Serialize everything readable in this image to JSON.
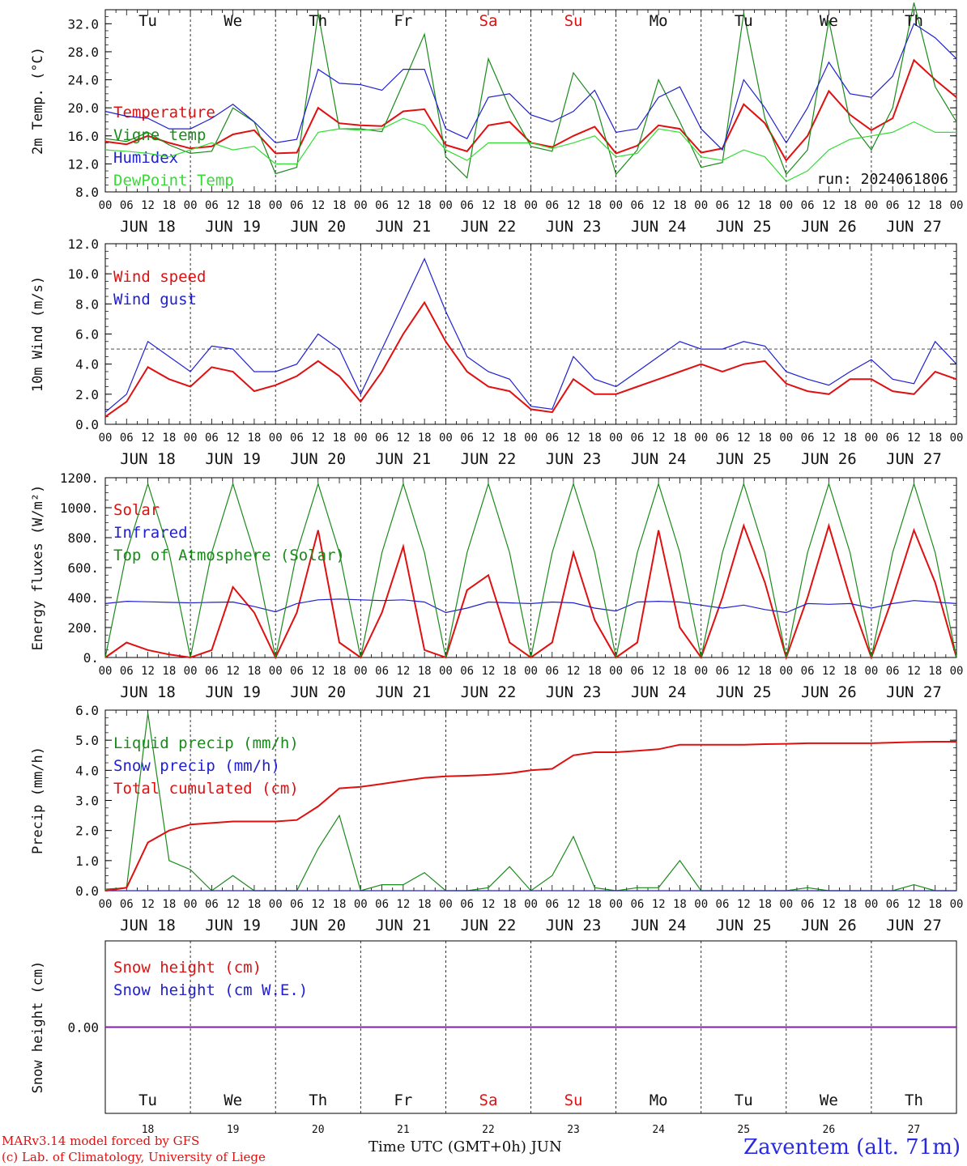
{
  "run_label": "run: 2024061806",
  "x_axis_label": "Time UTC (GMT+0h) JUN",
  "footer": {
    "model": "MARv3.14 model forced by GFS",
    "lab": "(c) Lab. of Climatology, University of Liege",
    "station": "Zaventem (alt. 71m)"
  },
  "days": [
    {
      "abbr": "Tu",
      "date": "JUN 18",
      "num": "18",
      "weekend": false
    },
    {
      "abbr": "We",
      "date": "JUN 19",
      "num": "19",
      "weekend": false
    },
    {
      "abbr": "Th",
      "date": "JUN 20",
      "num": "20",
      "weekend": false
    },
    {
      "abbr": "Fr",
      "date": "JUN 21",
      "num": "21",
      "weekend": false
    },
    {
      "abbr": "Sa",
      "date": "JUN 22",
      "num": "22",
      "weekend": true
    },
    {
      "abbr": "Su",
      "date": "JUN 23",
      "num": "23",
      "weekend": true
    },
    {
      "abbr": "Mo",
      "date": "JUN 24",
      "num": "24",
      "weekend": false
    },
    {
      "abbr": "Tu",
      "date": "JUN 25",
      "num": "25",
      "weekend": false
    },
    {
      "abbr": "We",
      "date": "JUN 26",
      "num": "26",
      "weekend": false
    },
    {
      "abbr": "Th",
      "date": "JUN 27",
      "num": "27",
      "weekend": false
    }
  ],
  "hour_labels": [
    "00",
    "06",
    "12",
    "18"
  ],
  "colors": {
    "red": "#e01010",
    "green": "#1a8a1a",
    "blue": "#2020d0",
    "lightgreen": "#33dd33",
    "purple": "#8020a0"
  },
  "chart_data": [
    {
      "type": "line",
      "ylabel": "2m Temp. (°C)",
      "ylim": [
        8,
        34
      ],
      "yticks": [
        "8.0",
        "12.0",
        "16.0",
        "20.0",
        "24.0",
        "28.0",
        "32.0"
      ],
      "ytick_values": [
        8,
        12,
        16,
        20,
        24,
        28,
        32
      ],
      "x_hours": [
        0,
        6,
        12,
        18,
        24,
        30,
        36,
        42,
        48,
        54,
        60,
        66,
        72,
        78,
        84,
        90,
        96,
        102,
        108,
        114,
        120,
        126,
        132,
        138,
        144,
        150,
        156,
        162,
        168,
        174,
        180,
        186,
        192,
        198,
        204,
        210,
        216,
        222,
        228,
        234,
        240
      ],
      "series": [
        {
          "name": "Temperature",
          "color": "red",
          "values": [
            15.2,
            14.8,
            16.0,
            15.0,
            14.2,
            14.5,
            16.2,
            16.8,
            13.5,
            13.6,
            20.0,
            17.8,
            17.5,
            17.4,
            19.5,
            19.8,
            14.7,
            13.8,
            17.5,
            18.0,
            15.0,
            14.4,
            16.0,
            17.3,
            13.5,
            14.6,
            17.5,
            17.0,
            13.6,
            14.2,
            20.5,
            17.8,
            12.5,
            16.0,
            22.4,
            19.0,
            16.8,
            18.5,
            26.8,
            24.0,
            21.5
          ]
        },
        {
          "name": "Vigne temp",
          "color": "green",
          "values": [
            15.6,
            15.2,
            16.5,
            14.7,
            13.5,
            13.8,
            20.0,
            18.0,
            10.6,
            11.5,
            33.5,
            17.0,
            17.0,
            16.6,
            23.5,
            30.5,
            13.0,
            10.0,
            27.0,
            20.0,
            14.5,
            13.8,
            25.0,
            21.0,
            10.5,
            14.0,
            24.0,
            18.0,
            11.5,
            12.2,
            33.5,
            18.5,
            10.5,
            14.0,
            32.5,
            18.0,
            14.0,
            20.0,
            35.0,
            23.0,
            18.0
          ]
        },
        {
          "name": "Humidex",
          "color": "blue",
          "values": [
            19.5,
            18.8,
            18.5,
            17.0,
            17.0,
            18.5,
            20.5,
            18.0,
            15.0,
            15.5,
            25.5,
            23.5,
            23.3,
            22.5,
            25.5,
            25.5,
            17.0,
            15.6,
            21.5,
            22.0,
            19.0,
            18.0,
            19.5,
            22.5,
            16.5,
            17.0,
            21.5,
            23.0,
            17.0,
            14.0,
            24.0,
            20.0,
            15.0,
            20.0,
            26.5,
            22.0,
            21.5,
            24.5,
            32.0,
            30.0,
            27.0
          ]
        },
        {
          "name": "DewPoint Temp",
          "color": "lightgreen",
          "values": [
            14.0,
            13.8,
            13.5,
            13.0,
            14.0,
            15.0,
            14.0,
            14.5,
            12.0,
            12.0,
            16.5,
            17.0,
            16.8,
            17.0,
            18.5,
            17.5,
            14.0,
            12.5,
            15.0,
            15.0,
            15.0,
            14.2,
            15.0,
            16.0,
            13.0,
            13.5,
            17.0,
            16.5,
            13.0,
            12.5,
            14.0,
            13.0,
            9.5,
            11.0,
            14.0,
            15.5,
            16.0,
            16.5,
            18.0,
            16.5,
            16.5
          ]
        }
      ]
    },
    {
      "type": "line",
      "ylabel": "10m Wind (m/s)",
      "ylim": [
        0,
        12
      ],
      "yticks": [
        "0.0",
        "2.0",
        "4.0",
        "6.0",
        "8.0",
        "10.0",
        "12.0"
      ],
      "ytick_values": [
        0,
        2,
        4,
        6,
        8,
        10,
        12
      ],
      "reference_line": 5,
      "x_hours": [
        0,
        6,
        12,
        18,
        24,
        30,
        36,
        42,
        48,
        54,
        60,
        66,
        72,
        78,
        84,
        90,
        96,
        102,
        108,
        114,
        120,
        126,
        132,
        138,
        144,
        150,
        156,
        162,
        168,
        174,
        180,
        186,
        192,
        198,
        204,
        210,
        216,
        222,
        228,
        234,
        240
      ],
      "series": [
        {
          "name": "Wind speed",
          "color": "red",
          "values": [
            0.5,
            1.5,
            3.8,
            3.0,
            2.5,
            3.8,
            3.5,
            2.2,
            2.6,
            3.2,
            4.2,
            3.2,
            1.5,
            3.5,
            6.0,
            8.1,
            5.5,
            3.5,
            2.5,
            2.2,
            1.0,
            0.8,
            3.0,
            2.0,
            2.0,
            2.5,
            3.0,
            3.5,
            4.0,
            3.5,
            4.0,
            4.2,
            2.7,
            2.2,
            2.0,
            3.0,
            3.0,
            2.2,
            2.0,
            3.5,
            3.0
          ]
        },
        {
          "name": "Wind gust",
          "color": "blue",
          "values": [
            0.8,
            2.0,
            5.5,
            4.5,
            3.5,
            5.2,
            5.0,
            3.5,
            3.5,
            4.0,
            6.0,
            5.0,
            2.0,
            5.0,
            8.0,
            11.0,
            7.5,
            4.5,
            3.5,
            3.0,
            1.2,
            1.0,
            4.5,
            3.0,
            2.5,
            3.5,
            4.5,
            5.5,
            5.0,
            5.0,
            5.5,
            5.2,
            3.5,
            3.0,
            2.6,
            3.5,
            4.3,
            3.0,
            2.7,
            5.5,
            4.0
          ]
        }
      ]
    },
    {
      "type": "line",
      "ylabel": "Energy fluxes (W/m²)",
      "ylim": [
        0,
        1200
      ],
      "yticks": [
        "0.",
        "200.",
        "400.",
        "600.",
        "800.",
        "1000.",
        "1200."
      ],
      "ytick_values": [
        0,
        200,
        400,
        600,
        800,
        1000,
        1200
      ],
      "x_hours": [
        0,
        6,
        12,
        18,
        24,
        30,
        36,
        42,
        48,
        54,
        60,
        66,
        72,
        78,
        84,
        90,
        96,
        102,
        108,
        114,
        120,
        126,
        132,
        138,
        144,
        150,
        156,
        162,
        168,
        174,
        180,
        186,
        192,
        198,
        204,
        210,
        216,
        222,
        228,
        234,
        240
      ],
      "series": [
        {
          "name": "Solar",
          "color": "red",
          "values": [
            0,
            100,
            50,
            20,
            0,
            50,
            470,
            300,
            0,
            300,
            850,
            100,
            0,
            300,
            740,
            50,
            0,
            450,
            550,
            100,
            0,
            100,
            700,
            250,
            0,
            100,
            850,
            200,
            0,
            400,
            880,
            500,
            0,
            400,
            880,
            400,
            0,
            400,
            850,
            500,
            0
          ]
        },
        {
          "name": "Infrared",
          "color": "blue",
          "values": [
            360,
            375,
            372,
            368,
            365,
            368,
            370,
            340,
            305,
            360,
            385,
            390,
            385,
            380,
            385,
            370,
            300,
            330,
            370,
            365,
            360,
            370,
            365,
            330,
            310,
            370,
            375,
            370,
            350,
            330,
            350,
            320,
            300,
            360,
            355,
            360,
            330,
            360,
            380,
            370,
            360
          ]
        },
        {
          "name": "Top of Atmosphere (Solar)",
          "color": "green",
          "values": [
            0,
            700,
            1160,
            700,
            0,
            700,
            1160,
            700,
            0,
            700,
            1160,
            700,
            0,
            700,
            1160,
            700,
            0,
            700,
            1160,
            700,
            0,
            700,
            1160,
            700,
            0,
            700,
            1160,
            700,
            0,
            700,
            1160,
            700,
            0,
            700,
            1160,
            700,
            0,
            700,
            1160,
            700,
            0
          ]
        }
      ]
    },
    {
      "type": "line",
      "ylabel": "Precip (mm/h)",
      "ylim": [
        0,
        6
      ],
      "yticks": [
        "0.0",
        "1.0",
        "2.0",
        "3.0",
        "4.0",
        "5.0",
        "6.0"
      ],
      "ytick_values": [
        0,
        1,
        2,
        3,
        4,
        5,
        6
      ],
      "x_hours": [
        0,
        6,
        12,
        18,
        24,
        30,
        36,
        42,
        48,
        54,
        60,
        66,
        72,
        78,
        84,
        90,
        96,
        102,
        108,
        114,
        120,
        126,
        132,
        138,
        144,
        150,
        156,
        162,
        168,
        174,
        180,
        186,
        192,
        198,
        204,
        210,
        216,
        222,
        228,
        234,
        240
      ],
      "series": [
        {
          "name": "Liquid precip (mm/h)",
          "color": "green",
          "values": [
            0.05,
            0.1,
            5.9,
            1.0,
            0.7,
            0.0,
            0.5,
            0.0,
            0.0,
            0.0,
            1.4,
            2.5,
            0.0,
            0.2,
            0.2,
            0.6,
            0.0,
            0.0,
            0.1,
            0.8,
            0.0,
            0.5,
            1.8,
            0.1,
            0.0,
            0.1,
            0.1,
            1.0,
            0.0,
            0.0,
            0.0,
            0.0,
            0.0,
            0.1,
            0.0,
            0.0,
            0.0,
            0.0,
            0.2,
            0.0,
            0.0
          ]
        },
        {
          "name": "Snow precip (mm/h)",
          "color": "blue",
          "values": [
            0,
            0,
            0,
            0,
            0,
            0,
            0,
            0,
            0,
            0,
            0,
            0,
            0,
            0,
            0,
            0,
            0,
            0,
            0,
            0,
            0,
            0,
            0,
            0,
            0,
            0,
            0,
            0,
            0,
            0,
            0,
            0,
            0,
            0,
            0,
            0,
            0,
            0,
            0,
            0,
            0
          ]
        },
        {
          "name": "Total cumulated (cm)",
          "color": "red",
          "values": [
            0.0,
            0.1,
            1.6,
            2.0,
            2.2,
            2.25,
            2.3,
            2.3,
            2.3,
            2.35,
            2.8,
            3.4,
            3.45,
            3.55,
            3.65,
            3.75,
            3.8,
            3.82,
            3.85,
            3.9,
            4.0,
            4.05,
            4.5,
            4.6,
            4.6,
            4.65,
            4.7,
            4.85,
            4.85,
            4.85,
            4.85,
            4.87,
            4.88,
            4.9,
            4.9,
            4.9,
            4.9,
            4.92,
            4.94,
            4.95,
            4.95
          ]
        }
      ]
    },
    {
      "type": "line",
      "ylabel": "Snow height (cm)",
      "ylim": [
        -1,
        1
      ],
      "yticks": [
        "0.00"
      ],
      "ytick_values": [
        0
      ],
      "x_hours": [
        0,
        240
      ],
      "series": [
        {
          "name": "Snow height (cm)",
          "color": "red",
          "values": [
            0,
            0
          ]
        },
        {
          "name": "Snow height (cm W.E.)",
          "color": "blue",
          "values": [
            0,
            0
          ]
        }
      ]
    }
  ]
}
